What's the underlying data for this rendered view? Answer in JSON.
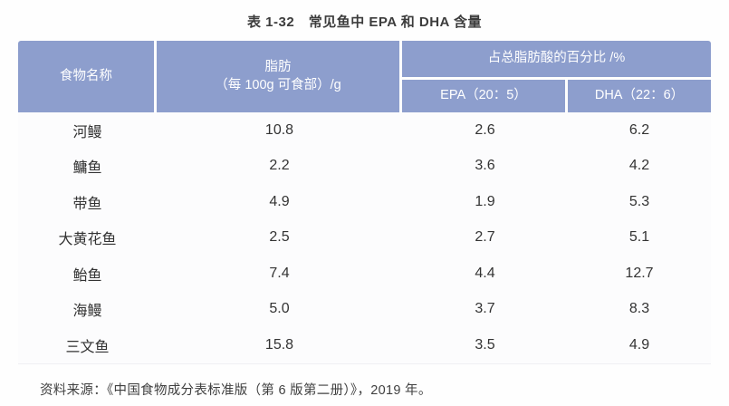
{
  "title": "表 1-32　常见鱼中 EPA 和 DHA 含量",
  "source": "资料来源：《中国食物成分表标准版（第 6 版第二册）》，2019 年。",
  "colors": {
    "header_bg": "#8d9ecd",
    "header_text": "#ffffff",
    "body_text": "#333333"
  },
  "table": {
    "headers": {
      "food_name": "食物名称",
      "fat_line1": "脂肪",
      "fat_line2": "（每 100g 可食部）/g",
      "pct_group": "占总脂肪酸的百分比 /%",
      "epa": "EPA（20：5）",
      "dha": "DHA（22：6）"
    },
    "rows": [
      {
        "name": "河鳗",
        "fat": "10.8",
        "epa": "2.6",
        "dha": "6.2"
      },
      {
        "name": "鳙鱼",
        "fat": "2.2",
        "epa": "3.6",
        "dha": "4.2"
      },
      {
        "name": "带鱼",
        "fat": "4.9",
        "epa": "1.9",
        "dha": "5.3"
      },
      {
        "name": "大黄花鱼",
        "fat": "2.5",
        "epa": "2.7",
        "dha": "5.1"
      },
      {
        "name": "鲐鱼",
        "fat": "7.4",
        "epa": "4.4",
        "dha": "12.7"
      },
      {
        "name": "海鳗",
        "fat": "5.0",
        "epa": "3.7",
        "dha": "8.3"
      },
      {
        "name": "三文鱼",
        "fat": "15.8",
        "epa": "3.5",
        "dha": "4.9"
      }
    ]
  },
  "chart_data": {
    "type": "table",
    "title": "表 1-32　常见鱼中 EPA 和 DHA 含量",
    "columns": [
      "食物名称",
      "脂肪（每 100g 可食部）/g",
      "EPA（20：5）/%",
      "DHA（22：6）/%"
    ],
    "rows": [
      [
        "河鳗",
        10.8,
        2.6,
        6.2
      ],
      [
        "鳙鱼",
        2.2,
        3.6,
        4.2
      ],
      [
        "带鱼",
        4.9,
        1.9,
        5.3
      ],
      [
        "大黄花鱼",
        2.5,
        2.7,
        5.1
      ],
      [
        "鲐鱼",
        7.4,
        4.4,
        12.7
      ],
      [
        "海鳗",
        5.0,
        3.7,
        8.3
      ],
      [
        "三文鱼",
        15.8,
        3.5,
        4.9
      ]
    ]
  }
}
